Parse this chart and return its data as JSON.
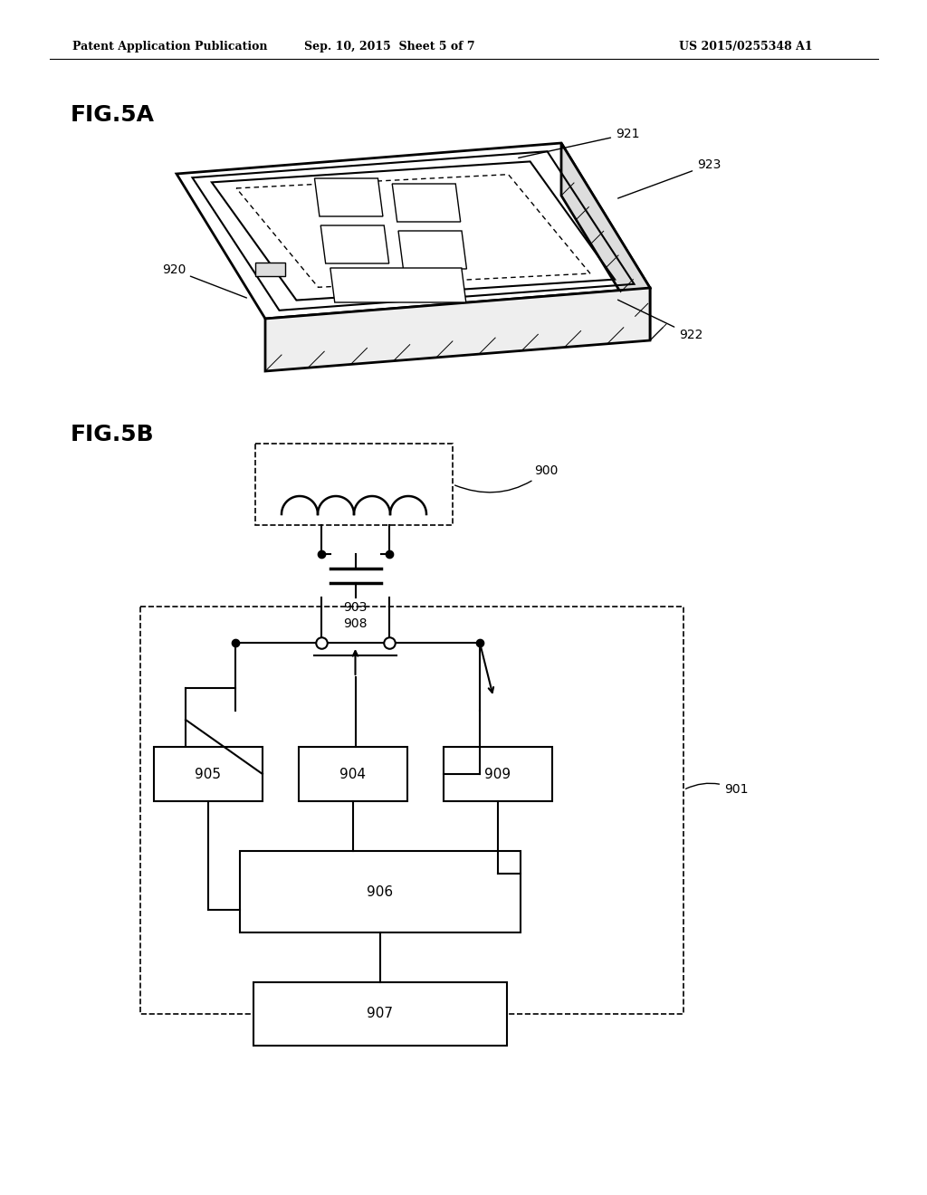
{
  "background_color": "#ffffff",
  "header_left": "Patent Application Publication",
  "header_mid": "Sep. 10, 2015  Sheet 5 of 7",
  "header_right": "US 2015/0255348 A1",
  "fig5a_label": "FIG.5A",
  "fig5b_label": "FIG.5B"
}
